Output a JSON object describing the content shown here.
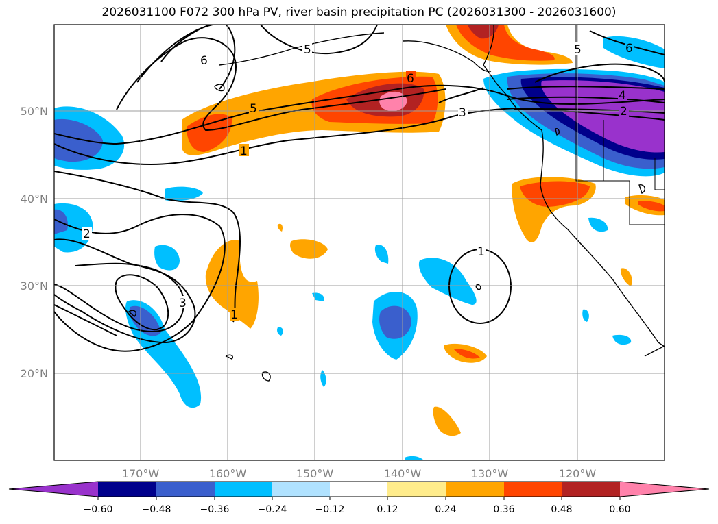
{
  "title": "2026031100 F072 300 hPa PV, river basin precipitation PC (2026031300 - 2026031600)",
  "map": {
    "lat_labels": [
      "50°N",
      "40°N",
      "30°N",
      "20°N"
    ],
    "lon_labels": [
      "170°W",
      "160°W",
      "150°W",
      "140°W",
      "130°W",
      "120°W"
    ],
    "contour_labels": [
      "6",
      "5",
      "5",
      "6",
      "5",
      "6",
      "4",
      "3",
      "2",
      "1",
      "2",
      "3",
      "1",
      "1"
    ]
  },
  "colorbar": {
    "ticks": [
      "−0.60",
      "−0.48",
      "−0.36",
      "−0.24",
      "−0.12",
      "0.12",
      "0.24",
      "0.36",
      "0.48",
      "0.60"
    ],
    "colors": [
      "#9932cc",
      "#00008b",
      "#3a5fcd",
      "#00bfff",
      "#b0e2ff",
      "#ffffff",
      "#ffec8b",
      "#ffa500",
      "#ff4500",
      "#b22222",
      "#ff82ab"
    ]
  }
}
